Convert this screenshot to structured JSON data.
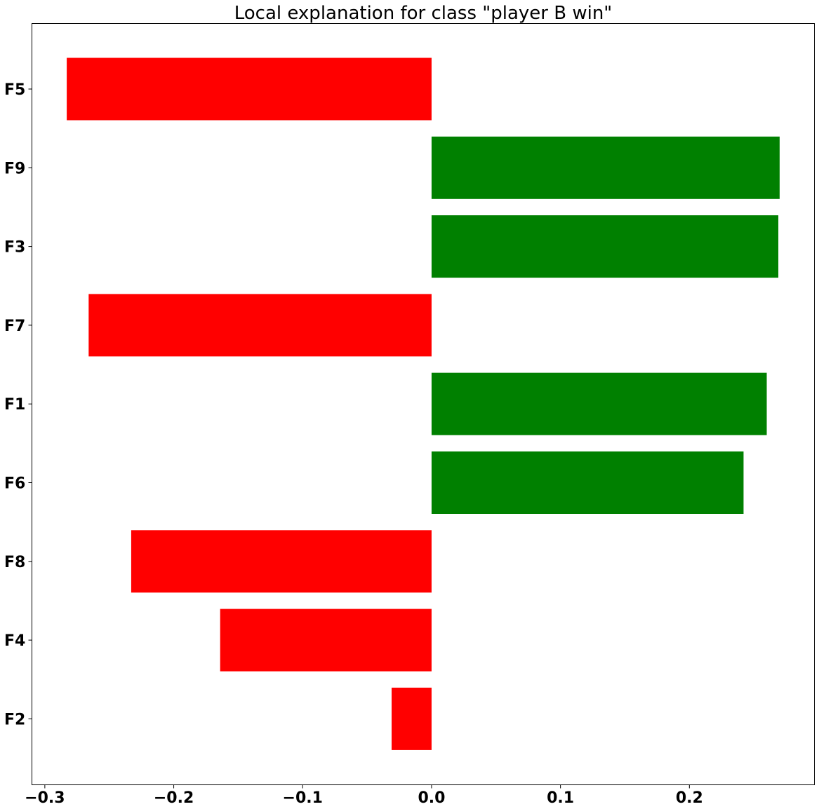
{
  "chart_data": {
    "type": "bar",
    "orientation": "horizontal",
    "title": "Local explanation for class \"player B win\"",
    "xlabel": "",
    "ylabel": "",
    "categories": [
      "F5",
      "F9",
      "F3",
      "F7",
      "F1",
      "F6",
      "F8",
      "F4",
      "F2"
    ],
    "values": [
      -0.283,
      0.27,
      0.269,
      -0.266,
      0.26,
      0.242,
      -0.233,
      -0.164,
      -0.031
    ],
    "xlim": [
      -0.31,
      0.297
    ],
    "xticks": [
      -0.3,
      -0.2,
      -0.1,
      0.0,
      0.1,
      0.2
    ],
    "xtick_labels": [
      "−0.3",
      "−0.2",
      "−0.1",
      "0.0",
      "0.1",
      "0.2"
    ],
    "grid": false,
    "legend": "none",
    "colors": {
      "positive": "#008000",
      "negative": "#ff0000",
      "axis": "#000000",
      "background": "#ffffff"
    }
  }
}
